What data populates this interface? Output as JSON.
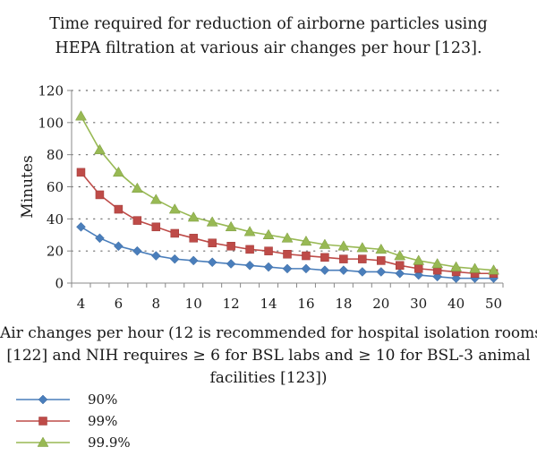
{
  "title_lines": [
    "Time required for reduction of airborne particles using",
    "HEPA filtration at various air changes per hour [123]."
  ],
  "xlabel_lines": [
    "Air changes per hour (12 is recommended for hospital isolation rooms",
    "[122] and NIH requires ≥ 6 for BSL labs and ≥ 10 for BSL-3 animal",
    "facilities [123])"
  ],
  "chart_data": {
    "type": "line",
    "title": "Time required for reduction of airborne particles using HEPA filtration at various air changes per hour [123].",
    "xlabel": "Air changes per hour (12 is recommended for hospital isolation rooms [122] and NIH requires ≥ 6 for BSL labs and ≥ 10 for BSL-3 animal facilities [123])",
    "ylabel": "Minutes",
    "ylim": [
      0,
      120
    ],
    "y_ticks": [
      0,
      20,
      40,
      60,
      80,
      100,
      120
    ],
    "x": [
      4,
      5,
      6,
      7,
      8,
      9,
      10,
      11,
      12,
      13,
      14,
      15,
      16,
      17,
      18,
      19,
      20,
      25,
      30,
      35,
      40,
      45,
      50
    ],
    "x_tick_labels": [
      "4",
      "6",
      "8",
      "10",
      "12",
      "14",
      "16",
      "18",
      "20",
      "30",
      "40",
      "50"
    ],
    "grid": "horizontal dotted",
    "legend_position": "bottom-left",
    "series": [
      {
        "name": "90%",
        "color": "#4a7ebb",
        "marker": "diamond",
        "values": [
          35,
          28,
          23,
          20,
          17,
          15,
          14,
          13,
          12,
          11,
          10,
          9,
          9,
          8,
          8,
          7,
          7,
          6,
          5,
          4,
          3,
          3,
          3
        ]
      },
      {
        "name": "99%",
        "color": "#be4b48",
        "marker": "square",
        "values": [
          69,
          55,
          46,
          39,
          35,
          31,
          28,
          25,
          23,
          21,
          20,
          18,
          17,
          16,
          15,
          15,
          14,
          11,
          9,
          8,
          7,
          6,
          6
        ]
      },
      {
        "name": "99.9%",
        "color": "#98b954",
        "marker": "triangle",
        "values": [
          104,
          83,
          69,
          59,
          52,
          46,
          41,
          38,
          35,
          32,
          30,
          28,
          26,
          24,
          23,
          22,
          21,
          17,
          14,
          12,
          10,
          9,
          8
        ]
      }
    ]
  }
}
